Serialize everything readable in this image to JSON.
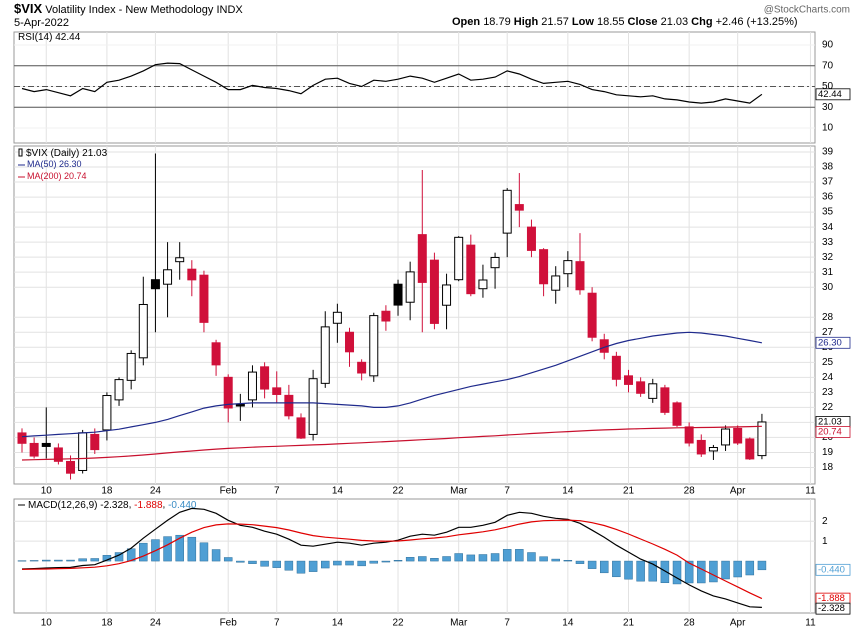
{
  "header": {
    "symbol": "$VIX",
    "name": "Volatility Index - New Methodology INDX",
    "date": "5-Apr-2022",
    "open_label": "Open",
    "high_label": "High",
    "low_label": "Low",
    "close_label": "Close",
    "chg_label": "Chg",
    "chg": "+2.46",
    "chg_pct": "(+13.25%)",
    "watermark": "@StockCharts.com"
  },
  "chart_data": [
    {
      "type": "line",
      "ylim": [
        -4.5,
        102.5
      ],
      "yticks": [
        10,
        30,
        50,
        70,
        90
      ],
      "reference_lines": [
        30,
        50,
        70
      ],
      "series": [
        {
          "name": "RSI(14)",
          "color": "#000000",
          "values": [
            48,
            45,
            47,
            44,
            41,
            48,
            45,
            54,
            56,
            60,
            65,
            71,
            72.5,
            72,
            66,
            60,
            54,
            47,
            47,
            51,
            49,
            48,
            46,
            43,
            51,
            57,
            58,
            53,
            50,
            56,
            55,
            57,
            60,
            58,
            54,
            58,
            62,
            56,
            57,
            59,
            65,
            62,
            57,
            53,
            54,
            55,
            52,
            47,
            45,
            42,
            41,
            40,
            41,
            38,
            37,
            35,
            34,
            35,
            38,
            36,
            34,
            42.44,
            null,
            null,
            null,
            null
          ]
        }
      ]
    },
    {
      "type": "candlestick",
      "ylim": [
        16.9,
        39.4
      ],
      "grid": true,
      "yticks": [
        18,
        19,
        20,
        21,
        22,
        23,
        24,
        25,
        26,
        27,
        28,
        30,
        31,
        32,
        33,
        34,
        35,
        36,
        37,
        38,
        39
      ],
      "categories": [
        null,
        null,
        "10",
        null,
        null,
        null,
        null,
        "18",
        null,
        null,
        null,
        "24",
        null,
        null,
        null,
        null,
        null,
        "Feb",
        null,
        null,
        null,
        "7",
        null,
        null,
        null,
        null,
        "14",
        null,
        null,
        null,
        null,
        "22",
        null,
        null,
        null,
        null,
        "Mar",
        null,
        null,
        null,
        "7",
        null,
        null,
        null,
        null,
        "14",
        null,
        null,
        null,
        null,
        "21",
        null,
        null,
        null,
        null,
        "28",
        null,
        null,
        null,
        "Apr",
        null,
        null,
        null,
        null,
        null,
        "11"
      ],
      "series": [
        {
          "name": "$VIX (Daily)",
          "type": "candlestick",
          "color_up": "#000000",
          "color_down": "#d0103a",
          "open": [
            20.3,
            19.6,
            19.6,
            19.3,
            18.4,
            17.8,
            20.2,
            20.5,
            22.5,
            23.8,
            25.3,
            30.5,
            30.2,
            31.7,
            31.2,
            30.8,
            26.3,
            24.0,
            22.2,
            22.5,
            24.7,
            23.3,
            22.8,
            21.3,
            20.2,
            23.6,
            27.6,
            27.0,
            25.0,
            24.1,
            28.4,
            30.2,
            29.0,
            33.5,
            31.8,
            28.8,
            30.5,
            32.8,
            29.9,
            31.3,
            33.6,
            35.5,
            34.0,
            32.5,
            29.8,
            30.9,
            31.7,
            29.6,
            26.5,
            25.4,
            24.1,
            23.7,
            22.6,
            23.3,
            22.3,
            20.7,
            19.8,
            19.1,
            19.5,
            20.6,
            19.9,
            18.79,
            null,
            null,
            null,
            null
          ],
          "high": [
            20.6,
            20.0,
            22.0,
            19.6,
            18.8,
            20.5,
            20.6,
            23.0,
            24.0,
            25.8,
            30.7,
            38.9,
            33.0,
            33.0,
            31.8,
            31.1,
            26.5,
            24.2,
            22.9,
            24.8,
            25.0,
            24.4,
            23.5,
            21.6,
            24.5,
            28.4,
            28.9,
            27.3,
            25.2,
            28.3,
            28.8,
            30.5,
            31.7,
            37.8,
            32.3,
            30.9,
            33.4,
            33.5,
            31.5,
            32.3,
            36.6,
            37.6,
            34.5,
            32.6,
            31.4,
            32.4,
            33.6,
            30.0,
            26.9,
            25.7,
            24.5,
            24.0,
            23.9,
            23.5,
            22.4,
            21.0,
            20.2,
            19.5,
            20.8,
            20.8,
            20.0,
            21.57,
            null,
            null,
            null,
            null
          ],
          "low": [
            19.0,
            18.6,
            18.6,
            18.2,
            17.2,
            17.6,
            18.9,
            19.8,
            22.1,
            23.2,
            24.8,
            27.0,
            28.0,
            30.5,
            29.4,
            27.0,
            24.1,
            21.0,
            21.1,
            22.0,
            22.6,
            22.3,
            21.2,
            19.9,
            19.8,
            23.3,
            26.3,
            24.7,
            23.8,
            23.7,
            27.1,
            28.1,
            27.8,
            27.0,
            27.2,
            27.2,
            30.4,
            29.4,
            29.3,
            29.9,
            32.0,
            34.0,
            32.0,
            29.4,
            28.9,
            30.0,
            29.5,
            26.4,
            25.2,
            23.4,
            23.0,
            22.7,
            22.3,
            21.5,
            20.7,
            19.4,
            18.7,
            18.5,
            19.1,
            19.5,
            18.5,
            18.55,
            null,
            null,
            null,
            null
          ],
          "close": [
            19.61,
            18.76,
            19.4,
            18.41,
            17.62,
            20.31,
            19.19,
            22.79,
            23.85,
            25.59,
            28.85,
            29.9,
            31.16,
            31.96,
            30.49,
            27.66,
            24.83,
            21.96,
            22.09,
            24.35,
            23.22,
            22.86,
            21.44,
            19.96,
            23.91,
            27.36,
            28.33,
            25.7,
            24.29,
            28.11,
            27.75,
            28.81,
            31.02,
            30.32,
            27.59,
            30.15,
            33.32,
            29.57,
            30.48,
            31.98,
            36.45,
            35.13,
            32.45,
            30.23,
            30.75,
            31.77,
            29.83,
            26.67,
            25.67,
            23.87,
            23.53,
            22.94,
            23.57,
            21.67,
            20.81,
            19.63,
            18.9,
            19.33,
            20.56,
            19.63,
            18.57,
            21.03,
            null,
            null,
            null,
            null
          ]
        },
        {
          "name": "MA(50)",
          "type": "line",
          "color": "#1f2a8c",
          "values": [
            20.05,
            20.1,
            20.15,
            20.2,
            20.25,
            20.3,
            20.35,
            20.45,
            20.55,
            20.7,
            20.85,
            21.0,
            21.2,
            21.45,
            21.7,
            21.95,
            22.1,
            22.2,
            22.25,
            22.3,
            22.3,
            22.3,
            22.3,
            22.3,
            22.3,
            22.25,
            22.2,
            22.15,
            22.1,
            22.0,
            22.0,
            22.1,
            22.3,
            22.55,
            22.8,
            23.0,
            23.2,
            23.4,
            23.55,
            23.7,
            23.85,
            24.05,
            24.3,
            24.55,
            24.8,
            25.1,
            25.4,
            25.7,
            26.0,
            26.25,
            26.45,
            26.6,
            26.75,
            26.85,
            26.95,
            27.0,
            26.95,
            26.85,
            26.75,
            26.6,
            26.45,
            26.3,
            null,
            null,
            null,
            null
          ],
          "value_labels": [
            null,
            null,
            null,
            null,
            null,
            null,
            null,
            null,
            null,
            null,
            null,
            null,
            null,
            null,
            null,
            null,
            null,
            null,
            null,
            null,
            null,
            null,
            null,
            null,
            null,
            null,
            null,
            null,
            null,
            null,
            null,
            null,
            null,
            null,
            null,
            null,
            null,
            null,
            null,
            null,
            null,
            null,
            null,
            null,
            null,
            null,
            null,
            null,
            null,
            null,
            null,
            null,
            null,
            null,
            null,
            null,
            null,
            null,
            null,
            null,
            null,
            "26.30",
            null,
            null,
            null,
            null
          ]
        },
        {
          "name": "MA(200)",
          "type": "line",
          "color": "#c8102e",
          "values": [
            18.5,
            18.52,
            18.54,
            18.56,
            18.58,
            18.6,
            18.63,
            18.67,
            18.72,
            18.77,
            18.83,
            18.9,
            18.97,
            19.04,
            19.1,
            19.16,
            19.22,
            19.27,
            19.31,
            19.35,
            19.38,
            19.41,
            19.44,
            19.47,
            19.5,
            19.53,
            19.57,
            19.61,
            19.64,
            19.68,
            19.72,
            19.76,
            19.8,
            19.85,
            19.89,
            19.93,
            19.98,
            20.02,
            20.07,
            20.11,
            20.16,
            20.21,
            20.26,
            20.3,
            20.35,
            20.39,
            20.43,
            20.47,
            20.5,
            20.53,
            20.56,
            20.58,
            20.6,
            20.62,
            20.64,
            20.65,
            20.66,
            20.67,
            20.69,
            20.7,
            20.72,
            20.74,
            null,
            null,
            null,
            null
          ]
        }
      ]
    },
    {
      "type": "macd",
      "ylim": [
        -2.61,
        3.12
      ],
      "yticks": [
        1,
        2
      ],
      "series": [
        {
          "name": "MACD(12,26,9)",
          "type": "line",
          "color": "#000000",
          "values": [
            -0.4,
            -0.38,
            -0.35,
            -0.33,
            -0.32,
            -0.22,
            -0.18,
            0.05,
            0.3,
            0.65,
            1.15,
            1.6,
            2.05,
            2.45,
            2.65,
            2.6,
            2.4,
            2.05,
            1.8,
            1.7,
            1.5,
            1.35,
            1.1,
            0.8,
            0.75,
            0.85,
            0.95,
            0.9,
            0.8,
            0.9,
            0.95,
            1.05,
            1.25,
            1.35,
            1.3,
            1.45,
            1.7,
            1.7,
            1.8,
            1.95,
            2.3,
            2.45,
            2.4,
            2.25,
            2.15,
            2.1,
            1.9,
            1.55,
            1.2,
            0.8,
            0.45,
            0.1,
            -0.15,
            -0.5,
            -0.85,
            -1.2,
            -1.5,
            -1.75,
            -1.9,
            -2.1,
            -2.3,
            -2.328,
            null,
            null,
            null,
            null
          ]
        },
        {
          "type": "line",
          "color": "#e00000",
          "values": [
            -0.42,
            -0.41,
            -0.4,
            -0.38,
            -0.37,
            -0.34,
            -0.31,
            -0.24,
            -0.13,
            0.03,
            0.25,
            0.52,
            0.82,
            1.15,
            1.45,
            1.68,
            1.82,
            1.87,
            1.86,
            1.83,
            1.76,
            1.68,
            1.56,
            1.41,
            1.28,
            1.2,
            1.15,
            1.1,
            1.04,
            1.01,
            1.0,
            1.01,
            1.06,
            1.12,
            1.16,
            1.22,
            1.32,
            1.39,
            1.47,
            1.57,
            1.71,
            1.86,
            1.97,
            2.03,
            2.05,
            2.06,
            2.03,
            1.93,
            1.79,
            1.59,
            1.36,
            1.11,
            0.86,
            0.59,
            0.3,
            -0.1,
            -0.4,
            -0.7,
            -1.0,
            -1.3,
            -1.6,
            -1.888,
            null,
            null,
            null,
            null
          ]
        },
        {
          "type": "bar",
          "color": "#4f9fd4",
          "values": [
            0.02,
            0.03,
            0.05,
            0.05,
            0.05,
            0.12,
            0.13,
            0.29,
            0.43,
            0.62,
            0.9,
            1.08,
            1.23,
            1.3,
            1.2,
            0.92,
            0.58,
            0.18,
            -0.06,
            -0.13,
            -0.26,
            -0.33,
            -0.46,
            -0.61,
            -0.53,
            -0.35,
            -0.2,
            -0.2,
            -0.24,
            -0.11,
            -0.05,
            0.04,
            0.19,
            0.23,
            0.14,
            0.23,
            0.38,
            0.31,
            0.33,
            0.38,
            0.59,
            0.59,
            0.43,
            0.22,
            0.1,
            0.04,
            -0.13,
            -0.38,
            -0.59,
            -0.79,
            -0.91,
            -1.01,
            -1.01,
            -1.09,
            -1.15,
            -1.1,
            -1.1,
            -1.05,
            -0.9,
            -0.8,
            -0.7,
            -0.44,
            null,
            null,
            null,
            null
          ],
          "value_labels": [
            null,
            null,
            null,
            null,
            null,
            null,
            null,
            null,
            null,
            null,
            null,
            null,
            null,
            null,
            null,
            null,
            null,
            null,
            null,
            null,
            null,
            null,
            null,
            null,
            null,
            null,
            null,
            null,
            null,
            null,
            null,
            null,
            null,
            null,
            null,
            null,
            null,
            null,
            null,
            null,
            null,
            null,
            null,
            null,
            null,
            null,
            null,
            null,
            null,
            null,
            null,
            null,
            null,
            null,
            null,
            null,
            null,
            null,
            null,
            null,
            null,
            "-0.440",
            null,
            null,
            null,
            null
          ]
        }
      ]
    }
  ]
}
